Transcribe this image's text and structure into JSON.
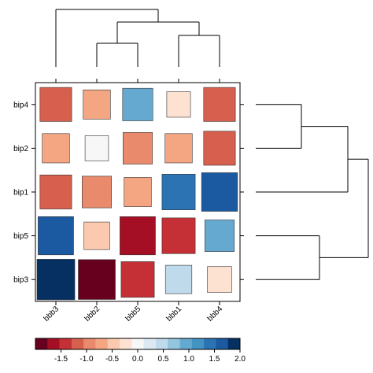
{
  "chart_data": {
    "type": "heatmap",
    "title": "",
    "xlabel": "",
    "ylabel": "",
    "columns": [
      "bbb3",
      "bbb2",
      "bbb5",
      "bbb1",
      "bbb4"
    ],
    "rows": [
      "bip4",
      "bip2",
      "bip1",
      "bip5",
      "bip3"
    ],
    "values": [
      [
        -1.2,
        -0.6,
        1.0,
        -0.15,
        -1.2
      ],
      [
        -0.6,
        -0.1,
        -0.9,
        -0.6,
        -1.2
      ],
      [
        -1.2,
        -0.9,
        -0.6,
        1.4,
        1.75
      ],
      [
        1.7,
        -0.4,
        -1.7,
        -1.4,
        0.9
      ],
      [
        2.0,
        -1.9,
        -1.4,
        0.5,
        -0.2
      ]
    ],
    "color_scale": {
      "min": -2.0,
      "max": 2.0,
      "ticks": [
        "-1.5",
        "-1.0",
        "-0.5",
        "0.0",
        "0.5",
        "1.0",
        "1.5",
        "2.0"
      ],
      "tick_values": [
        -1.5,
        -1.0,
        -0.5,
        0.0,
        0.5,
        1.0,
        1.5,
        2.0
      ],
      "colors": [
        "#67001f",
        "#a50f26",
        "#c52f36",
        "#d6604d",
        "#e98a6d",
        "#f4a582",
        "#fbc9ad",
        "#fde2d2",
        "#f7f7f7",
        "#dde9f2",
        "#bfdaeb",
        "#92c5de",
        "#66a9d0",
        "#4393c3",
        "#2b73b2",
        "#1b5aa0",
        "#053061"
      ]
    },
    "column_dendrogram": "((bbb3,(bbb2,bbb5)),(bbb1,bbb4))",
    "row_dendrogram": "(((bip4,bip2),bip1),(bip5,bip3))"
  }
}
